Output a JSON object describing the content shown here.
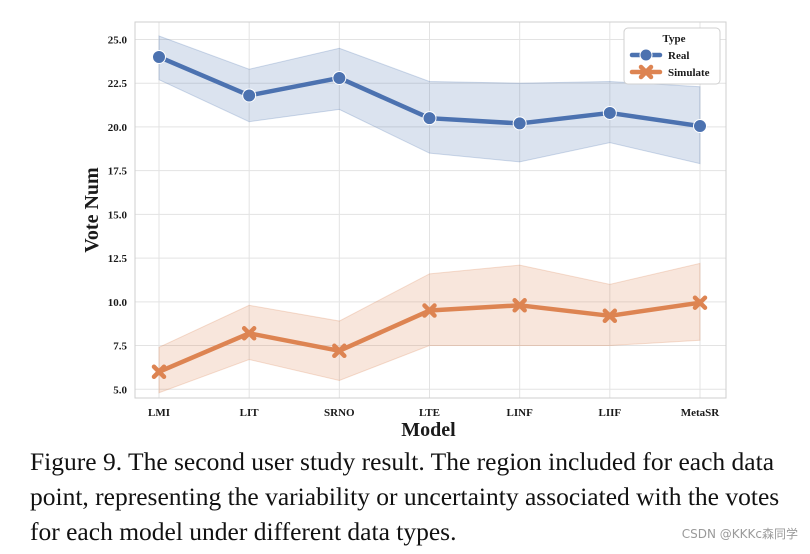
{
  "chart_data": {
    "type": "line",
    "categories": [
      "LMI",
      "LIT",
      "SRNO",
      "LTE",
      "LINF",
      "LIIF",
      "MetaSR"
    ],
    "series": [
      {
        "name": "Real",
        "values": [
          24.0,
          21.8,
          22.8,
          20.5,
          20.2,
          20.8,
          20.05
        ],
        "lower": [
          22.7,
          20.3,
          21.0,
          18.5,
          18.0,
          19.1,
          17.9
        ],
        "upper": [
          25.2,
          23.3,
          24.5,
          22.6,
          22.5,
          22.6,
          22.3
        ],
        "color": "#4C72B0",
        "marker": "circle"
      },
      {
        "name": "Simulate",
        "values": [
          6.0,
          8.2,
          7.2,
          9.5,
          9.8,
          9.2,
          9.95
        ],
        "lower": [
          4.8,
          6.7,
          5.5,
          7.5,
          7.5,
          7.5,
          7.8
        ],
        "upper": [
          7.4,
          9.8,
          8.9,
          11.6,
          12.1,
          11.0,
          12.2
        ],
        "color": "#DD8452",
        "marker": "x"
      }
    ],
    "xlabel": "Model",
    "ylabel": "Vote Num",
    "yticks": [
      "5.0",
      "7.5",
      "10.0",
      "12.5",
      "15.0",
      "17.5",
      "20.0",
      "22.5",
      "25.0"
    ],
    "ylim": [
      4.5,
      26.0
    ],
    "grid": true,
    "legend": {
      "title": "Type",
      "placement": "top-right"
    }
  },
  "caption": "Figure 9. The second user study result. The region included for each data point, representing the variability or uncertainty associated with the votes for each model under different data types.",
  "watermark": "CSDN @KKKc森同学"
}
